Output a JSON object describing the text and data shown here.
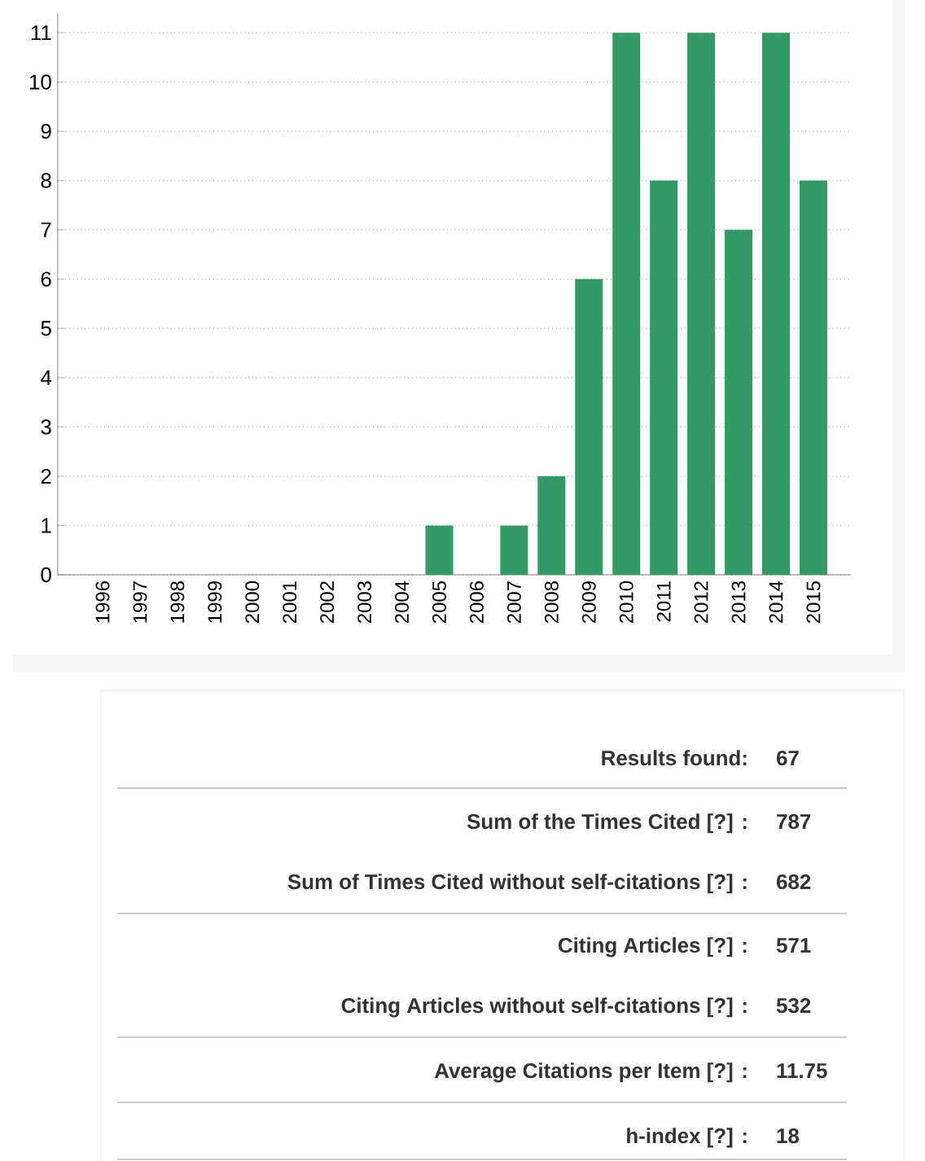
{
  "chart_data": [
    {
      "type": "bar",
      "categories": [
        "1996",
        "1997",
        "1998",
        "1999",
        "2000",
        "2001",
        "2002",
        "2003",
        "2004",
        "2005",
        "2006",
        "2007",
        "2008",
        "2009",
        "2010",
        "2011",
        "2012",
        "2013",
        "2014",
        "2015"
      ],
      "values": [
        0,
        0,
        0,
        0,
        0,
        0,
        0,
        0,
        0,
        1,
        0,
        1,
        2,
        6,
        11,
        8,
        11,
        7,
        11,
        8
      ],
      "color": "#339966",
      "ylim": [
        0,
        11.4
      ],
      "yticks": [
        0,
        1,
        2,
        3,
        4,
        5,
        6,
        7,
        8,
        9,
        10,
        11
      ],
      "grid": "y"
    },
    {
      "type": "other",
      "annotations": [
        "Results found:",
        "67",
        "Sum of the Times Cited [?] :",
        "787",
        "Sum of Times Cited without self-citations [?] :",
        "682",
        "Citing Articles [?] :",
        "571",
        "Citing Articles without self-citations [?] :",
        "532",
        "Average Citations per Item [?] :",
        "11.75",
        "h-index [?] :",
        "18"
      ]
    }
  ]
}
